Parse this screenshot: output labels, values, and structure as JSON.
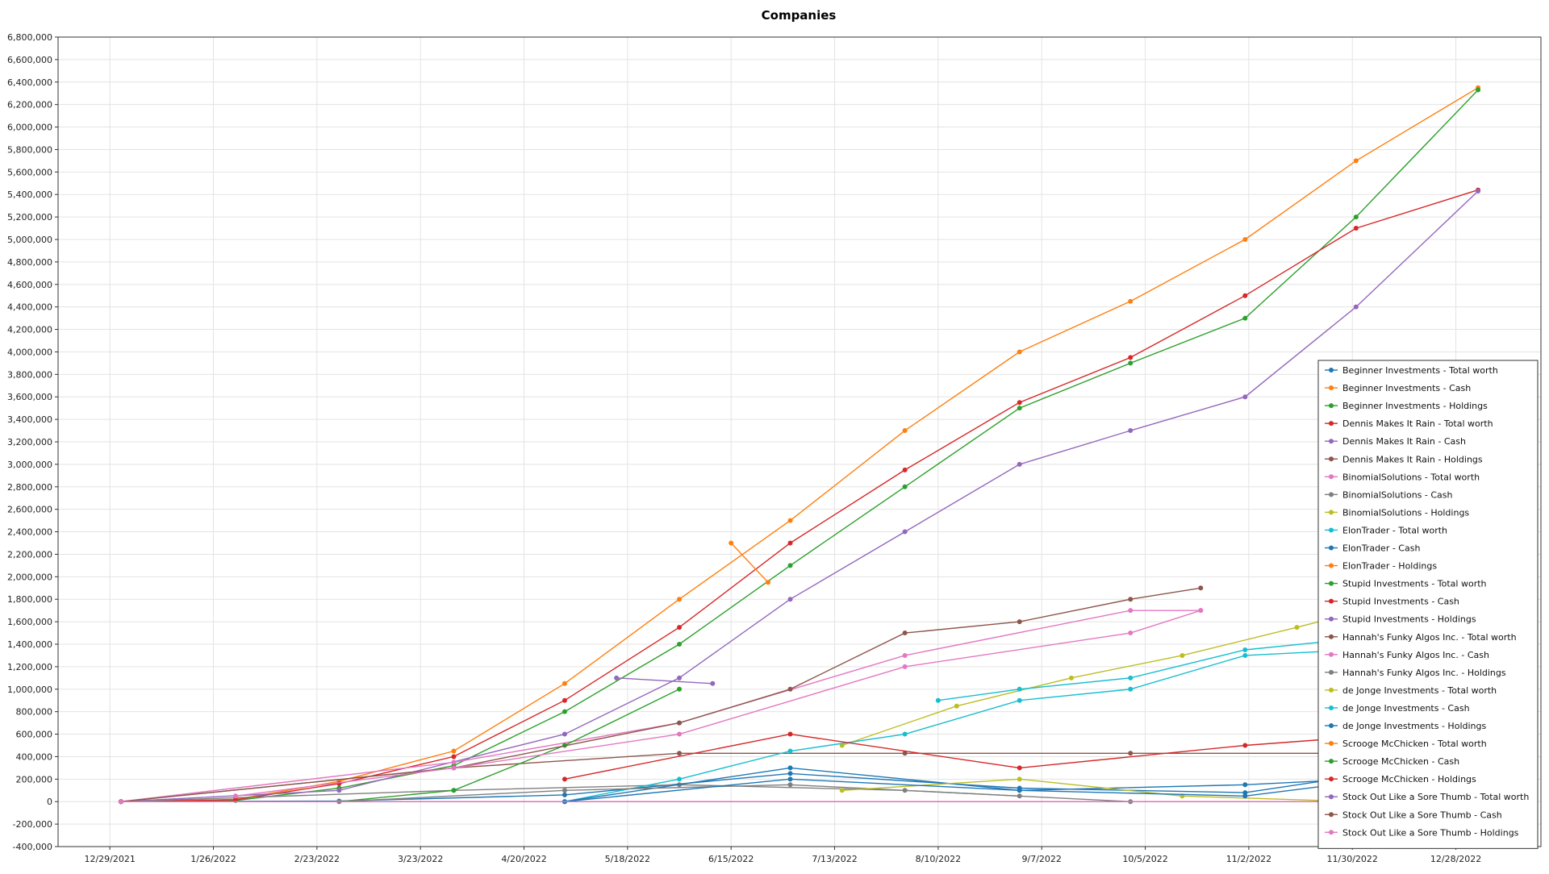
{
  "chart_data": {
    "type": "line",
    "title": "Companies",
    "xlabel": "",
    "ylabel": "",
    "ylim": [
      -400000,
      6800000
    ],
    "xlim": [
      "2021-12-15",
      "2023-01-20"
    ],
    "x_ticks": [
      "12/29/2021",
      "1/26/2022",
      "2/23/2022",
      "3/23/2022",
      "4/20/2022",
      "5/18/2022",
      "6/15/2022",
      "7/13/2022",
      "8/10/2022",
      "9/7/2022",
      "10/5/2022",
      "11/2/2022",
      "11/30/2022",
      "12/28/2022"
    ],
    "x_tick_dates": [
      "2021-12-29",
      "2022-01-26",
      "2022-02-23",
      "2022-03-23",
      "2022-04-20",
      "2022-05-18",
      "2022-06-15",
      "2022-07-13",
      "2022-08-10",
      "2022-09-07",
      "2022-10-05",
      "2022-11-02",
      "2022-11-30",
      "2022-12-28"
    ],
    "y_ticks": [
      "-400,000",
      "-200,000",
      "0",
      "200,000",
      "400,000",
      "600,000",
      "800,000",
      "1,000,000",
      "1,200,000",
      "1,400,000",
      "1,600,000",
      "1,800,000",
      "2,000,000",
      "2,200,000",
      "2,400,000",
      "2,600,000",
      "2,800,000",
      "3,000,000",
      "3,200,000",
      "3,400,000",
      "3,600,000",
      "3,800,000",
      "4,000,000",
      "4,200,000",
      "4,400,000",
      "4,600,000",
      "4,800,000",
      "5,000,000",
      "5,200,000",
      "5,400,000",
      "5,600,000",
      "5,800,000",
      "6,000,000",
      "6,200,000",
      "6,400,000",
      "6,600,000",
      "6,800,000"
    ],
    "grid": true,
    "legend_position": "right",
    "series": [
      {
        "name": "Beginner Investments - Total worth",
        "color": "#1f77b4",
        "x": [
          "2022-01-01",
          "2022-03-01",
          "2022-05-01",
          "2022-07-01",
          "2022-09-01",
          "2022-11-01",
          "2023-01-01"
        ],
        "y": [
          0,
          5000,
          60000,
          250000,
          120000,
          80000,
          380000
        ]
      },
      {
        "name": "Beginner Investments - Cash",
        "color": "#ff7f0e",
        "x": [
          "2022-01-01",
          "2022-02-01",
          "2022-03-01",
          "2022-04-01",
          "2022-05-01",
          "2022-06-01",
          "2022-07-01",
          "2022-08-01",
          "2022-09-01",
          "2022-10-01",
          "2022-11-01",
          "2022-12-01",
          "2023-01-03"
        ],
        "y": [
          0,
          20000,
          180000,
          450000,
          1050000,
          1800000,
          2500000,
          3300000,
          4000000,
          4450000,
          5000000,
          5700000,
          6350000
        ]
      },
      {
        "name": "Beginner Investments - Holdings",
        "color": "#2ca02c",
        "x": [
          "2022-01-01",
          "2022-02-01",
          "2022-03-01",
          "2022-04-01",
          "2022-05-01",
          "2022-06-01",
          "2022-07-01",
          "2022-08-01",
          "2022-09-01",
          "2022-10-01",
          "2022-11-01",
          "2022-12-01",
          "2023-01-03"
        ],
        "y": [
          0,
          10000,
          120000,
          320000,
          800000,
          1400000,
          2100000,
          2800000,
          3500000,
          3900000,
          4300000,
          5200000,
          6330000
        ]
      },
      {
        "name": "Dennis Makes It Rain - Total worth",
        "color": "#d62728",
        "x": [
          "2022-01-01",
          "2022-02-01",
          "2022-03-01",
          "2022-04-01",
          "2022-05-01",
          "2022-06-01",
          "2022-07-01",
          "2022-08-01",
          "2022-09-01",
          "2022-10-01",
          "2022-11-01",
          "2022-12-01",
          "2023-01-03"
        ],
        "y": [
          0,
          15000,
          160000,
          400000,
          900000,
          1550000,
          2300000,
          2950000,
          3550000,
          3950000,
          4500000,
          5100000,
          5440000
        ]
      },
      {
        "name": "Dennis Makes It Rain - Cash",
        "color": "#9467bd",
        "x": [
          "2022-01-01",
          "2022-03-01",
          "2022-05-01",
          "2022-06-01",
          "2022-07-01",
          "2022-08-01",
          "2022-09-01",
          "2022-10-01",
          "2022-11-01",
          "2022-12-01",
          "2023-01-03"
        ],
        "y": [
          0,
          100000,
          600000,
          1100000,
          1800000,
          2400000,
          3000000,
          3300000,
          3600000,
          4400000,
          5430000
        ]
      },
      {
        "name": "Dennis Makes It Rain - Holdings",
        "color": "#8c564b",
        "x": [
          "2022-01-01",
          "2022-04-01",
          "2022-06-01",
          "2022-08-01",
          "2022-10-01",
          "2022-12-01",
          "2023-01-03"
        ],
        "y": [
          0,
          300000,
          430000,
          430000,
          430000,
          430000,
          430000
        ]
      },
      {
        "name": "BinomialSolutions - Total worth",
        "color": "#e377c2",
        "x": [
          "2022-01-01",
          "2022-04-01",
          "2022-06-01",
          "2022-08-01",
          "2022-10-01",
          "2022-10-20"
        ],
        "y": [
          0,
          350000,
          700000,
          1300000,
          1700000,
          1700000
        ]
      },
      {
        "name": "BinomialSolutions - Cash",
        "color": "#7f7f7f",
        "x": [
          "2022-01-01",
          "2022-04-01",
          "2022-06-01",
          "2022-08-01",
          "2022-10-01"
        ],
        "y": [
          0,
          100000,
          150000,
          100000,
          0
        ]
      },
      {
        "name": "BinomialSolutions - Holdings",
        "color": "#bcbd22",
        "x": [
          "2022-07-15",
          "2022-08-15",
          "2022-09-15",
          "2022-10-15",
          "2022-11-15",
          "2022-12-05"
        ],
        "y": [
          500000,
          850000,
          1100000,
          1300000,
          1550000,
          1720000
        ]
      },
      {
        "name": "ElonTrader - Total worth",
        "color": "#17becf",
        "x": [
          "2022-05-01",
          "2022-06-01",
          "2022-07-01",
          "2022-08-01",
          "2022-09-01",
          "2022-10-01",
          "2022-11-01",
          "2022-12-01"
        ],
        "y": [
          0,
          200000,
          450000,
          600000,
          900000,
          1000000,
          1300000,
          1350000
        ]
      },
      {
        "name": "ElonTrader - Cash",
        "color": "#1f77b4",
        "x": [
          "2022-05-01",
          "2022-07-01",
          "2022-09-01",
          "2022-11-01",
          "2023-01-01"
        ],
        "y": [
          0,
          300000,
          100000,
          150000,
          250000
        ]
      },
      {
        "name": "ElonTrader - Holdings",
        "color": "#ff7f0e",
        "x": [
          "2022-06-15",
          "2022-06-25"
        ],
        "y": [
          2300000,
          1950000
        ]
      },
      {
        "name": "Stupid Investments - Total worth",
        "color": "#2ca02c",
        "x": [
          "2022-03-01",
          "2022-04-01",
          "2022-05-01",
          "2022-06-01"
        ],
        "y": [
          0,
          100000,
          500000,
          1000000
        ]
      },
      {
        "name": "Stupid Investments - Cash",
        "color": "#d62728",
        "x": [
          "2022-05-01",
          "2022-07-01",
          "2022-09-01",
          "2022-11-01",
          "2023-01-01"
        ],
        "y": [
          200000,
          600000,
          300000,
          500000,
          650000
        ]
      },
      {
        "name": "Stupid Investments - Holdings",
        "color": "#9467bd",
        "x": [
          "2022-05-15",
          "2022-06-10"
        ],
        "y": [
          1100000,
          1050000
        ]
      },
      {
        "name": "Hannah's Funky Algos Inc. - Total worth",
        "color": "#8c564b",
        "x": [
          "2022-01-01",
          "2022-04-01",
          "2022-06-01",
          "2022-07-01",
          "2022-08-01",
          "2022-09-01",
          "2022-10-01",
          "2022-10-20"
        ],
        "y": [
          0,
          300000,
          700000,
          1000000,
          1500000,
          1600000,
          1800000,
          1900000
        ]
      },
      {
        "name": "Hannah's Funky Algos Inc. - Cash",
        "color": "#e377c2",
        "x": [
          "2022-02-01",
          "2022-04-01",
          "2022-06-01",
          "2022-08-01",
          "2022-10-01",
          "2022-10-20"
        ],
        "y": [
          50000,
          300000,
          600000,
          1200000,
          1500000,
          1700000
        ]
      },
      {
        "name": "Hannah's Funky Algos Inc. - Holdings",
        "color": "#7f7f7f",
        "x": [
          "2022-03-01",
          "2022-05-01",
          "2022-07-01",
          "2022-09-01"
        ],
        "y": [
          0,
          100000,
          150000,
          50000
        ]
      },
      {
        "name": "de Jonge Investments - Total worth",
        "color": "#bcbd22",
        "x": [
          "2022-07-15",
          "2022-09-01",
          "2022-10-15",
          "2022-12-01"
        ],
        "y": [
          100000,
          200000,
          50000,
          0
        ]
      },
      {
        "name": "de Jonge Investments - Cash",
        "color": "#17becf",
        "x": [
          "2022-08-10",
          "2022-09-01",
          "2022-10-01",
          "2022-11-01",
          "2022-12-01"
        ],
        "y": [
          900000,
          1000000,
          1100000,
          1350000,
          1450000
        ]
      },
      {
        "name": "de Jonge Investments - Holdings",
        "color": "#1f77b4",
        "x": [
          "2022-05-01",
          "2022-07-01",
          "2022-09-01",
          "2022-11-01",
          "2023-01-01"
        ],
        "y": [
          0,
          200000,
          100000,
          50000,
          300000
        ]
      },
      {
        "name": "Scrooge McChicken - Total worth",
        "color": "#ff7f0e",
        "x": [
          "2022-01-01",
          "2023-01-01"
        ],
        "y": [
          0,
          0
        ]
      },
      {
        "name": "Scrooge McChicken - Cash",
        "color": "#2ca02c",
        "x": [
          "2022-01-01",
          "2023-01-01"
        ],
        "y": [
          0,
          0
        ]
      },
      {
        "name": "Scrooge McChicken - Holdings",
        "color": "#d62728",
        "x": [
          "2022-01-01",
          "2023-01-01"
        ],
        "y": [
          0,
          0
        ]
      },
      {
        "name": "Stock Out Like a Sore Thumb - Total worth",
        "color": "#9467bd",
        "x": [
          "2022-01-01",
          "2023-01-01"
        ],
        "y": [
          0,
          0
        ]
      },
      {
        "name": "Stock Out Like a Sore Thumb - Cash",
        "color": "#8c564b",
        "x": [
          "2022-01-01",
          "2023-01-01"
        ],
        "y": [
          0,
          0
        ]
      },
      {
        "name": "Stock Out Like a Sore Thumb - Holdings",
        "color": "#e377c2",
        "x": [
          "2022-01-01",
          "2023-01-01"
        ],
        "y": [
          0,
          0
        ]
      }
    ]
  }
}
